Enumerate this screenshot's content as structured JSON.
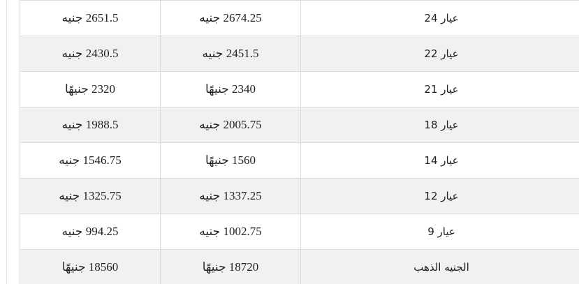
{
  "table": {
    "rows": [
      {
        "karat": "عيار 24",
        "buy": "2674.25 جنيه",
        "sell": "2651.5 جنيه"
      },
      {
        "karat": "عيار 22",
        "buy": "2451.5 جنيه",
        "sell": "2430.5 جنيه"
      },
      {
        "karat": "عيار 21",
        "buy": "2340 جنيهًا",
        "sell": "2320 جنيهًا"
      },
      {
        "karat": "عيار 18",
        "buy": "2005.75 جنيه",
        "sell": "1988.5 جنيه"
      },
      {
        "karat": "عيار 14",
        "buy": "1560 جنيهًا",
        "sell": "1546.75 جنيه"
      },
      {
        "karat": "عيار 12",
        "buy": "1337.25 جنيه",
        "sell": "1325.75 جنيه"
      },
      {
        "karat": "عيار 9",
        "buy": "1002.75 جنيه",
        "sell": "994.25 جنيه"
      },
      {
        "karat": "الجنيه الذهب",
        "buy": "18720 جنيهًا",
        "sell": "18560 جنيهًا"
      }
    ]
  }
}
